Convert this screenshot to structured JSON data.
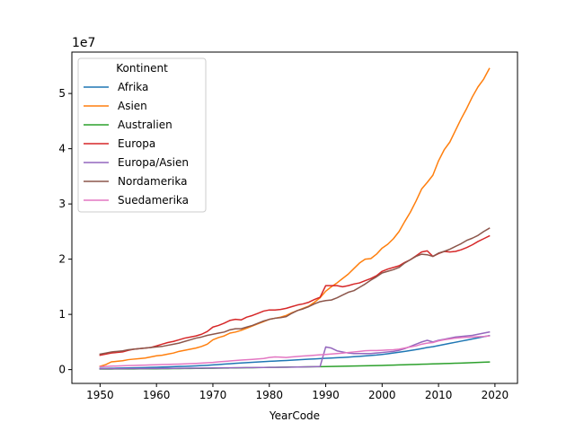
{
  "chart_data": {
    "type": "line",
    "title": "",
    "xlabel": "YearCode",
    "ylabel": "",
    "offset_label": "1e7",
    "xlim": [
      1945,
      2024
    ],
    "ylim": [
      -2500000,
      57500000
    ],
    "x_ticks": [
      1950,
      1960,
      1970,
      1980,
      1990,
      2000,
      2010,
      2020
    ],
    "y_ticks": [
      0,
      10000000,
      20000000,
      30000000,
      40000000,
      50000000
    ],
    "y_tick_labels": [
      "0",
      "1",
      "2",
      "3",
      "4",
      "5"
    ],
    "grid": false,
    "legend": {
      "title": "Kontinent",
      "placement": "upper-left"
    },
    "x": [
      1950,
      1951,
      1952,
      1953,
      1954,
      1955,
      1956,
      1957,
      1958,
      1959,
      1960,
      1961,
      1962,
      1963,
      1964,
      1965,
      1966,
      1967,
      1968,
      1969,
      1970,
      1971,
      1972,
      1973,
      1974,
      1975,
      1976,
      1977,
      1978,
      1979,
      1980,
      1981,
      1982,
      1983,
      1984,
      1985,
      1986,
      1987,
      1988,
      1989,
      1990,
      1991,
      1992,
      1993,
      1994,
      1995,
      1996,
      1997,
      1998,
      1999,
      2000,
      2001,
      2002,
      2003,
      2004,
      2005,
      2006,
      2007,
      2008,
      2009,
      2010,
      2011,
      2012,
      2013,
      2014,
      2015,
      2016,
      2017,
      2018,
      2019
    ],
    "series": [
      {
        "name": "Afrika",
        "color": "#1f77b4",
        "values": [
          200000,
          220000,
          240000,
          260000,
          280000,
          300000,
          320000,
          340000,
          370000,
          400000,
          430000,
          460000,
          490000,
          520000,
          560000,
          600000,
          640000,
          680000,
          730000,
          780000,
          850000,
          920000,
          990000,
          1060000,
          1130000,
          1200000,
          1260000,
          1320000,
          1380000,
          1440000,
          1500000,
          1550000,
          1600000,
          1650000,
          1700000,
          1760000,
          1820000,
          1880000,
          1940000,
          2000000,
          2050000,
          2100000,
          2150000,
          2200000,
          2260000,
          2330000,
          2400000,
          2480000,
          2560000,
          2640000,
          2750000,
          2870000,
          3000000,
          3150000,
          3300000,
          3450000,
          3620000,
          3800000,
          4000000,
          4150000,
          4350000,
          4550000,
          4750000,
          4950000,
          5150000,
          5350000,
          5550000,
          5750000,
          5950000,
          6150000
        ]
      },
      {
        "name": "Asien",
        "color": "#ff7f0e",
        "values": [
          600000,
          900000,
          1400000,
          1500000,
          1600000,
          1800000,
          1900000,
          2000000,
          2100000,
          2300000,
          2500000,
          2600000,
          2800000,
          3000000,
          3300000,
          3500000,
          3700000,
          3900000,
          4200000,
          4600000,
          5400000,
          5800000,
          6100000,
          6600000,
          6800000,
          7100000,
          7500000,
          7900000,
          8300000,
          8700000,
          9100000,
          9300000,
          9500000,
          9800000,
          10300000,
          10700000,
          11100000,
          11500000,
          12200000,
          13000000,
          14200000,
          15000000,
          15700000,
          16500000,
          17300000,
          18300000,
          19300000,
          20000000,
          20100000,
          20900000,
          22000000,
          22700000,
          23700000,
          25000000,
          26800000,
          28500000,
          30500000,
          32700000,
          33900000,
          35200000,
          37800000,
          39800000,
          41200000,
          43300000,
          45400000,
          47300000,
          49400000,
          51200000,
          52600000,
          54500000
        ]
      },
      {
        "name": "Australien",
        "color": "#2ca02c",
        "values": [
          100000,
          105000,
          110000,
          115000,
          120000,
          125000,
          130000,
          135000,
          140000,
          145000,
          150000,
          160000,
          170000,
          180000,
          190000,
          200000,
          210000,
          220000,
          230000,
          240000,
          250000,
          265000,
          280000,
          295000,
          310000,
          325000,
          340000,
          355000,
          370000,
          385000,
          400000,
          415000,
          430000,
          445000,
          460000,
          475000,
          490000,
          505000,
          520000,
          535000,
          550000,
          570000,
          590000,
          610000,
          630000,
          650000,
          670000,
          690000,
          710000,
          730000,
          760000,
          790000,
          820000,
          850000,
          880000,
          910000,
          940000,
          970000,
          1000000,
          1030000,
          1060000,
          1090000,
          1120000,
          1150000,
          1180000,
          1220000,
          1260000,
          1300000,
          1340000,
          1380000
        ]
      },
      {
        "name": "Europa",
        "color": "#d62728",
        "values": [
          2600000,
          2800000,
          3000000,
          3100000,
          3200000,
          3500000,
          3700000,
          3800000,
          3900000,
          4000000,
          4300000,
          4600000,
          4900000,
          5100000,
          5400000,
          5700000,
          5900000,
          6100000,
          6400000,
          6900000,
          7700000,
          8000000,
          8400000,
          8900000,
          9100000,
          9000000,
          9500000,
          9800000,
          10200000,
          10600000,
          10800000,
          10800000,
          10900000,
          11100000,
          11400000,
          11700000,
          11900000,
          12200000,
          12700000,
          13100000,
          15200000,
          15200000,
          15200000,
          15000000,
          15200000,
          15500000,
          15700000,
          16100000,
          16500000,
          17000000,
          17800000,
          18200000,
          18500000,
          18800000,
          19400000,
          19900000,
          20600000,
          21300000,
          21500000,
          20500000,
          21000000,
          21400000,
          21300000,
          21400000,
          21700000,
          22100000,
          22600000,
          23200000,
          23700000,
          24200000
        ]
      },
      {
        "name": "Europa/Asien",
        "color": "#9467bd",
        "values": [
          150000,
          155000,
          160000,
          165000,
          170000,
          175000,
          180000,
          185000,
          190000,
          195000,
          200000,
          210000,
          220000,
          230000,
          240000,
          250000,
          260000,
          270000,
          280000,
          290000,
          300000,
          310000,
          320000,
          330000,
          340000,
          350000,
          360000,
          370000,
          380000,
          390000,
          400000,
          410000,
          420000,
          430000,
          440000,
          460000,
          480000,
          500000,
          530000,
          560000,
          4100000,
          3900000,
          3400000,
          3200000,
          3000000,
          2900000,
          2900000,
          2900000,
          2900000,
          3000000,
          3100000,
          3200000,
          3300000,
          3500000,
          3800000,
          4200000,
          4600000,
          5000000,
          5300000,
          5000000,
          5300000,
          5500000,
          5700000,
          5900000,
          6000000,
          6100000,
          6200000,
          6400000,
          6600000,
          6800000
        ]
      },
      {
        "name": "Nordamerika",
        "color": "#8c564b",
        "values": [
          2800000,
          3000000,
          3200000,
          3300000,
          3400000,
          3600000,
          3700000,
          3800000,
          3900000,
          4000000,
          4100000,
          4200000,
          4400000,
          4600000,
          4800000,
          5100000,
          5400000,
          5700000,
          5900000,
          6200000,
          6400000,
          6600000,
          6800000,
          7200000,
          7400000,
          7400000,
          7700000,
          8000000,
          8400000,
          8800000,
          9100000,
          9300000,
          9400000,
          9600000,
          10200000,
          10700000,
          11000000,
          11400000,
          11900000,
          12300000,
          12500000,
          12600000,
          13000000,
          13500000,
          14000000,
          14300000,
          14900000,
          15500000,
          16200000,
          16800000,
          17500000,
          17800000,
          18100000,
          18500000,
          19300000,
          19900000,
          20500000,
          20900000,
          20800000,
          20500000,
          21100000,
          21400000,
          21800000,
          22300000,
          22800000,
          23400000,
          23800000,
          24300000,
          25000000,
          25600000
        ]
      },
      {
        "name": "Suedamerika",
        "color": "#e377c2",
        "values": [
          500000,
          560000,
          620000,
          660000,
          700000,
          730000,
          760000,
          790000,
          820000,
          850000,
          880000,
          910000,
          940000,
          970000,
          1000000,
          1040000,
          1080000,
          1120000,
          1170000,
          1230000,
          1300000,
          1400000,
          1480000,
          1560000,
          1640000,
          1720000,
          1790000,
          1860000,
          1940000,
          2020000,
          2200000,
          2300000,
          2250000,
          2200000,
          2300000,
          2380000,
          2450000,
          2530000,
          2600000,
          2680000,
          2750000,
          2830000,
          2900000,
          2980000,
          3100000,
          3200000,
          3300000,
          3420000,
          3450000,
          3450000,
          3500000,
          3550000,
          3600000,
          3700000,
          3900000,
          4100000,
          4300000,
          4600000,
          4800000,
          4900000,
          5200000,
          5400000,
          5550000,
          5700000,
          5800000,
          5850000,
          5900000,
          5950000,
          6000000,
          6100000
        ]
      }
    ]
  }
}
